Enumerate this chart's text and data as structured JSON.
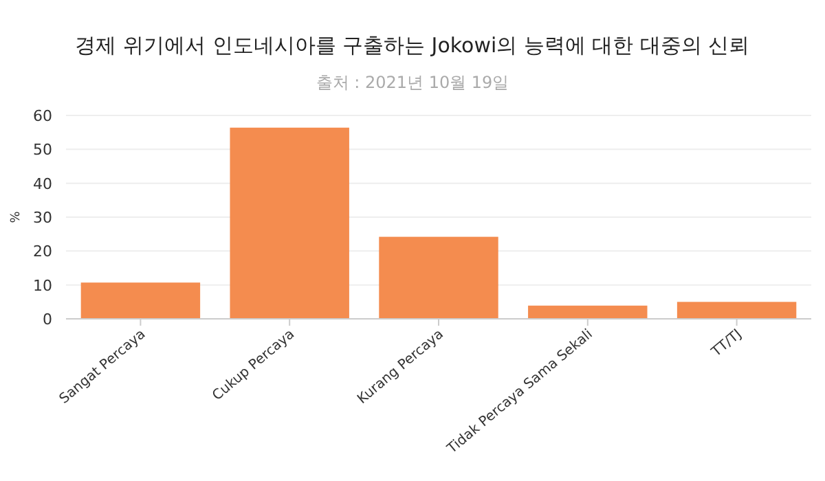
{
  "chart_data": {
    "type": "bar",
    "title": "경제 위기에서 인도네시아를 구출하는 Jokowi의 능력에 대한 대중의 신뢰",
    "subtitle": "출처 : 2021년 10월 19일",
    "ylabel": "%",
    "categories": [
      "Sangat Percaya",
      "Cukup Percaya",
      "Kurang Percaya",
      "Tidak Percaya Sama Sekali",
      "TT/TJ"
    ],
    "values": [
      10.7,
      56.4,
      24.2,
      3.9,
      5.0
    ],
    "color": "#f48c4f",
    "ylim": [
      0,
      60
    ],
    "yticks": [
      0,
      10,
      20,
      30,
      40,
      50,
      60
    ],
    "grid": "y"
  }
}
